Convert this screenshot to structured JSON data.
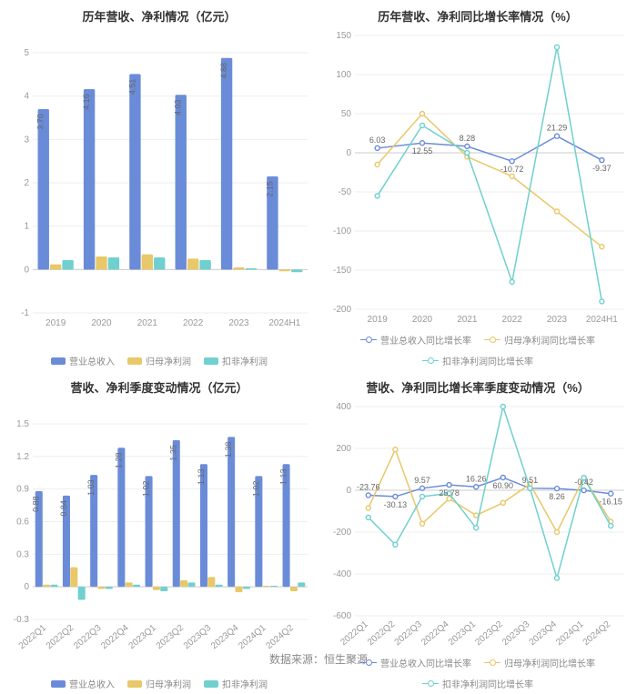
{
  "footer": "数据来源：恒生聚源",
  "colors": {
    "series_blue": "#6a8cd8",
    "series_yellow": "#e8c868",
    "series_teal": "#6fd0cf",
    "axis": "#cccccc",
    "grid": "#eeeeee",
    "tick_text": "#999999",
    "bar_label": "#666666",
    "title_text": "#333333",
    "background": "#ffffff"
  },
  "typography": {
    "title_fontsize": 13,
    "tick_fontsize": 10,
    "bar_label_fontsize": 9,
    "legend_fontsize": 10,
    "footer_fontsize": 12
  },
  "panels": {
    "tl": {
      "type": "bar",
      "title": "历年营收、净利情况（亿元）",
      "categories": [
        "2019",
        "2020",
        "2021",
        "2022",
        "2023",
        "2024H1"
      ],
      "series": [
        {
          "name": "营业总收入",
          "color": "#6a8cd8",
          "values": [
            3.7,
            4.16,
            4.51,
            4.03,
            4.88,
            2.15
          ]
        },
        {
          "name": "归母净利润",
          "color": "#e8c868",
          "values": [
            0.12,
            0.3,
            0.35,
            0.25,
            0.05,
            -0.04
          ]
        },
        {
          "name": "扣非净利润",
          "color": "#6fd0cf",
          "values": [
            0.22,
            0.28,
            0.28,
            0.22,
            0.03,
            -0.06
          ]
        }
      ],
      "bar_labels_series_index": 0,
      "bar_labels": [
        "3.70",
        "4.16",
        "4.51",
        "4.03",
        "4.88",
        "2.15"
      ],
      "ylim": [
        -1,
        5
      ],
      "yticks": [
        -1,
        0,
        1,
        2,
        3,
        4,
        5
      ],
      "bar_group_width": 0.78,
      "bar_gap": 0.02,
      "x_label_rotate": 0
    },
    "tr": {
      "type": "line",
      "title": "历年营收、净利同比增长率情况（%）",
      "categories": [
        "2019",
        "2020",
        "2021",
        "2022",
        "2023",
        "2024H1"
      ],
      "series": [
        {
          "name": "营业总收入同比增长率",
          "color": "#6a8cd8",
          "values": [
            6.03,
            12.55,
            8.28,
            -10.72,
            21.29,
            -9.37
          ]
        },
        {
          "name": "归母净利润同比增长率",
          "color": "#e8c868",
          "values": [
            -15,
            50,
            -5,
            -30,
            -75,
            -120
          ]
        },
        {
          "name": "扣非净利润同比增长率",
          "color": "#6fd0cf",
          "values": [
            -55,
            35,
            0,
            -165,
            135,
            -190
          ]
        }
      ],
      "point_labels_series_index": 0,
      "point_labels": [
        "6.03",
        "12.55",
        "8.28",
        "-10.72",
        "21.29",
        "-9.37"
      ],
      "ylim": [
        -200,
        150
      ],
      "yticks": [
        -200,
        -150,
        -100,
        -50,
        0,
        50,
        100,
        150
      ],
      "marker": "hollow-circle",
      "marker_size": 5,
      "line_width": 1.5,
      "x_label_rotate": 0
    },
    "bl": {
      "type": "bar",
      "title": "营收、净利季度变动情况（亿元）",
      "categories": [
        "2022Q1",
        "2022Q2",
        "2022Q3",
        "2022Q4",
        "2023Q1",
        "2023Q2",
        "2023Q3",
        "2023Q4",
        "2024Q1",
        "2024Q2"
      ],
      "series": [
        {
          "name": "营业总收入",
          "color": "#6a8cd8",
          "values": [
            0.88,
            0.84,
            1.03,
            1.28,
            1.02,
            1.35,
            1.13,
            1.38,
            1.02,
            1.13
          ]
        },
        {
          "name": "归母净利润",
          "color": "#e8c868",
          "values": [
            0.02,
            0.18,
            -0.02,
            0.04,
            -0.03,
            0.06,
            0.09,
            -0.05,
            0.01,
            -0.04
          ]
        },
        {
          "name": "扣非净利润",
          "color": "#6fd0cf",
          "values": [
            0.02,
            -0.12,
            -0.02,
            0.02,
            -0.04,
            0.04,
            0.02,
            -0.02,
            0.01,
            0.04
          ]
        }
      ],
      "bar_labels_series_index": 0,
      "bar_labels": [
        "0.88",
        "0.84",
        "1.03",
        "1.28",
        "1.02",
        "1.35",
        "1.13",
        "1.38",
        "1.02",
        "1.13"
      ],
      "ylim": [
        -0.3,
        1.5
      ],
      "yticks": [
        -0.3,
        0,
        0.3,
        0.6,
        0.9,
        1.2,
        1.5
      ],
      "bar_group_width": 0.82,
      "bar_gap": 0.01,
      "x_label_rotate": -40
    },
    "br": {
      "type": "line",
      "title": "营收、净利同比增长率季度变动情况（%）",
      "categories": [
        "2022Q1",
        "2022Q2",
        "2022Q3",
        "2022Q4",
        "2023Q1",
        "2023Q2",
        "2023Q3",
        "2023Q4",
        "2024Q1",
        "2024Q2"
      ],
      "series": [
        {
          "name": "营业总收入同比增长率",
          "color": "#6a8cd8",
          "values": [
            -23.76,
            -30.13,
            9.57,
            25.78,
            16.26,
            60.9,
            9.51,
            8.26,
            -0.42,
            -16.15
          ]
        },
        {
          "name": "归母净利润同比增长率",
          "color": "#e8c868",
          "values": [
            -85,
            195,
            -160,
            -40,
            -120,
            -60,
            30,
            -200,
            60,
            -150
          ]
        },
        {
          "name": "扣非净利润同比增长率",
          "color": "#6fd0cf",
          "values": [
            -130,
            -260,
            -30,
            -15,
            -180,
            400,
            10,
            -420,
            60,
            -170
          ]
        }
      ],
      "point_labels_series_index": 0,
      "point_labels": [
        "-23.76",
        "-30.13",
        "9.57",
        "25.78",
        "16.26",
        "60.90",
        "9.51",
        "8.26",
        "-0.42",
        "-16.15"
      ],
      "ylim": [
        -600,
        400
      ],
      "yticks": [
        -600,
        -400,
        -200,
        0,
        200,
        400
      ],
      "marker": "hollow-circle",
      "marker_size": 5,
      "line_width": 1.5,
      "x_label_rotate": -40
    }
  }
}
